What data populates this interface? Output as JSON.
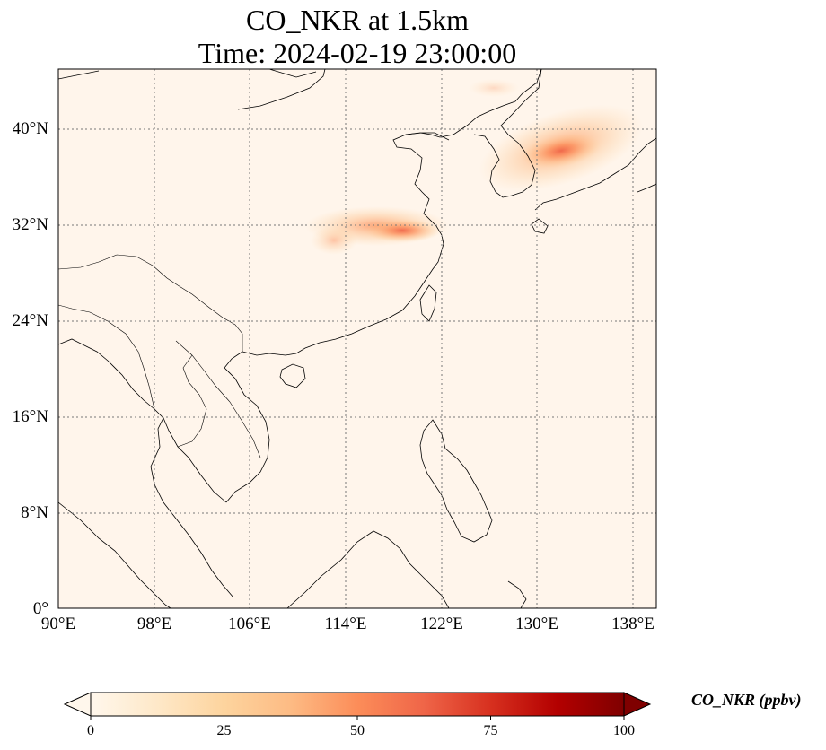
{
  "title": {
    "line1": "CO_NKR at 1.5km",
    "line2": "Time: 2024-02-19 23:00:00"
  },
  "map": {
    "projection": "PlateCarree",
    "lon_range": [
      90,
      139
    ],
    "lat_range": [
      0,
      45
    ],
    "gridlines": "dotted",
    "background_color": "#fff5eb",
    "coastline_color": "#000000"
  },
  "axes": {
    "lon_ticks": [
      "90°E",
      "98°E",
      "106°E",
      "114°E",
      "122°E",
      "130°E",
      "138°E"
    ],
    "lat_ticks": [
      "0°",
      "8°N",
      "16°N",
      "24°N",
      "32°N",
      "40°N"
    ]
  },
  "chart_data": {
    "type": "heatmap",
    "variable": "CO_NKR",
    "units": "ppbv",
    "colormap": "OrRd",
    "vmin": 0,
    "vmax": 100,
    "plumes": [
      {
        "lon": 118.5,
        "lat": 31.5,
        "peak": 45
      },
      {
        "lon": 131.5,
        "lat": 37.5,
        "peak": 40
      },
      {
        "lon": 113.5,
        "lat": 32.0,
        "peak": 18
      }
    ]
  },
  "colorbar": {
    "label": "CO_NKR (ppbv)",
    "ticks": [
      "0",
      "25",
      "50",
      "75",
      "100"
    ],
    "extend": "both"
  }
}
